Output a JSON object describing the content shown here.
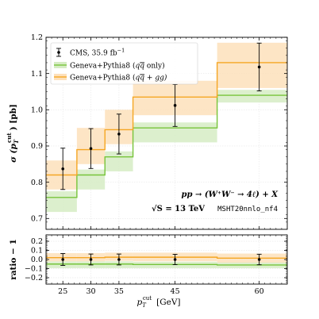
{
  "chart_data": [
    {
      "type": "step-histogram",
      "x_edges": [
        22,
        27.5,
        32.5,
        37.5,
        52.5,
        65
      ],
      "xlim": [
        22,
        65
      ],
      "ylim": [
        0.67,
        1.2
      ],
      "yticks": [
        0.7,
        0.8,
        0.9,
        1.0,
        1.1,
        1.2
      ],
      "ytick_labels": [
        "0.7",
        "0.8",
        "0.9",
        "1.0",
        "1.1",
        "1.2"
      ],
      "ylabel_main": "σ (p",
      "ylabel_sub": "T",
      "ylabel_sup": "cut",
      "ylabel_unit": ") [pb]",
      "series": [
        {
          "name_parts": {
            "base": "Geneva+Pythia8 (q",
            "bar": "q",
            "rest": " only)"
          },
          "color": "#77c43a",
          "band_color": "#d6ecc4",
          "values": [
            0.758,
            0.82,
            0.87,
            0.95,
            1.04
          ],
          "band_low": [
            0.718,
            0.78,
            0.83,
            0.91,
            1.02
          ],
          "band_high": [
            0.775,
            0.835,
            0.885,
            0.965,
            1.055
          ]
        },
        {
          "name_parts": {
            "base": "Geneva+Pythia8 (q",
            "bar": "q",
            "rest": " + gg)"
          },
          "color": "#f5a623",
          "band_color": "#fde0bb",
          "values": [
            0.82,
            0.89,
            0.945,
            1.035,
            1.13
          ],
          "band_low": [
            0.78,
            0.85,
            0.905,
            0.985,
            1.06
          ],
          "band_high": [
            0.86,
            0.95,
            1.0,
            1.08,
            1.185
          ]
        }
      ],
      "data_points": {
        "name": "CMS, 35.9 fb",
        "name_sup": "−1",
        "x": [
          25,
          30,
          35,
          45,
          60
        ],
        "y": [
          0.837,
          0.893,
          0.933,
          1.012,
          1.118
        ],
        "err_low": [
          0.057,
          0.055,
          0.055,
          0.058,
          0.066
        ],
        "err_high": [
          0.057,
          0.055,
          0.055,
          0.058,
          0.066
        ]
      },
      "annotations": {
        "process": "pp → (W⁺W⁻ → 4ℓ) + X",
        "energy": "√S = 13 TeV",
        "pdf": "MSHT20nnlo_nf4"
      },
      "legend_position": "top-left",
      "grid": true
    },
    {
      "type": "step-histogram-ratio",
      "ylim": [
        -0.27,
        0.27
      ],
      "yticks": [
        -0.2,
        -0.1,
        0.0,
        0.1,
        0.2
      ],
      "ytick_labels": [
        "−0.2",
        "−0.1",
        "0.0",
        "0.1",
        "0.2"
      ],
      "xticks": [
        25,
        30,
        35,
        45,
        60
      ],
      "xtick_labels": [
        "25",
        "30",
        "35",
        "45",
        "60"
      ],
      "ylabel": "ratio − 1",
      "xlabel_main": "p",
      "xlabel_sub": "T",
      "xlabel_sup": "cut",
      "xlabel_unit": "[GeV]",
      "series": [
        {
          "name": "green",
          "color": "#77c43a",
          "band_color": "#d6ecc4",
          "values": [
            -0.05,
            -0.05,
            -0.05,
            -0.055,
            -0.06
          ],
          "band_low": [
            -0.095,
            -0.095,
            -0.095,
            -0.095,
            -0.095
          ],
          "band_high": [
            -0.02,
            -0.02,
            -0.02,
            -0.025,
            -0.03
          ]
        },
        {
          "name": "orange",
          "color": "#f5a623",
          "band_color": "#fde0bb",
          "values": [
            0.02,
            0.02,
            0.025,
            0.025,
            0.015
          ],
          "band_low": [
            -0.02,
            -0.02,
            -0.015,
            -0.02,
            -0.035
          ],
          "band_high": [
            0.07,
            0.07,
            0.075,
            0.075,
            0.065
          ]
        }
      ],
      "data_points": {
        "x": [
          25,
          30,
          35,
          45,
          60
        ],
        "y": [
          0.0,
          0.0,
          0.0,
          0.0,
          0.0
        ],
        "err_low": [
          0.065,
          0.06,
          0.06,
          0.057,
          0.058
        ],
        "err_high": [
          0.065,
          0.06,
          0.06,
          0.057,
          0.058
        ]
      },
      "grid": true
    }
  ]
}
